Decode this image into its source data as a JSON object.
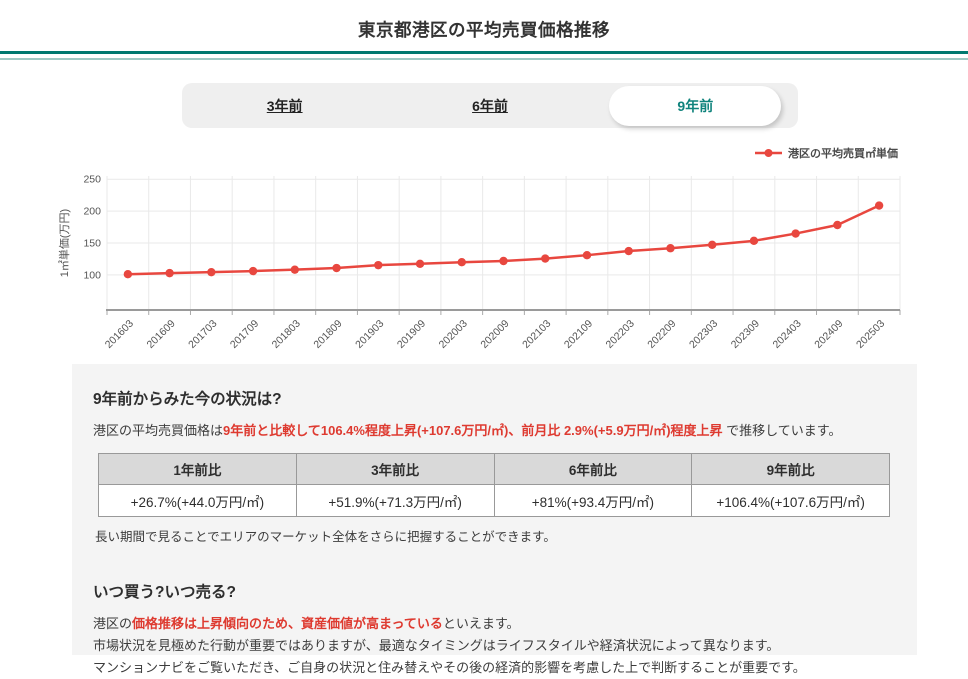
{
  "page": {
    "title": "東京都港区の平均売買価格推移"
  },
  "tabs": {
    "items": [
      {
        "label": "3年前",
        "active": false
      },
      {
        "label": "6年前",
        "active": false
      },
      {
        "label": "9年前",
        "active": true
      }
    ]
  },
  "legend": {
    "label": "港区の平均売買㎡単価"
  },
  "chart_data": {
    "type": "line",
    "x": [
      "201603",
      "201609",
      "201703",
      "201709",
      "201803",
      "201809",
      "201903",
      "201909",
      "202003",
      "202009",
      "202103",
      "202109",
      "202203",
      "202209",
      "202303",
      "202309",
      "202403",
      "202409",
      "202503"
    ],
    "series": [
      {
        "name": "港区の平均売買㎡単価",
        "values": [
          101.1,
          102.8,
          104.3,
          106.0,
          108.2,
          110.8,
          115.3,
          117.4,
          119.9,
          121.8,
          125.6,
          130.9,
          137.4,
          141.8,
          147.2,
          153.4,
          164.8,
          178.2,
          208.7
        ]
      }
    ],
    "title": "",
    "xlabel": "",
    "ylabel": "1㎡単価(万円)",
    "yticks": [
      100,
      150,
      200,
      250
    ],
    "ylim": [
      45,
      255
    ],
    "grid": true,
    "legend_position": "top-right",
    "line_color": "#e8473f"
  },
  "status": {
    "heading": "9年前からみた今の状況は?",
    "lead_prefix": "港区の平均売買価格は",
    "lead_highlight": "9年前と比較して106.4%程度上昇(+107.6万円/㎡)、前月比 2.9%(+5.9万円/㎡)程度上昇",
    "lead_suffix": " で推移しています。",
    "table": {
      "headers": [
        "1年前比",
        "3年前比",
        "6年前比",
        "9年前比"
      ],
      "values": [
        "+26.7%(+44.0万円/㎡)",
        "+51.9%(+71.3万円/㎡)",
        "+81%(+93.4万円/㎡)",
        "+106.4%(+107.6万円/㎡)"
      ]
    },
    "note": "長い期間で見ることでエリアのマーケット全体をさらに把握することができます。"
  },
  "advice": {
    "heading": "いつ買う?いつ売る?",
    "line1_prefix": "港区の",
    "line1_highlight": "価格推移は上昇傾向のため、資産価値が高まっている",
    "line1_suffix": "といえます。",
    "line2": "市場状況を見極めた行動が重要ではありますが、最適なタイミングはライフスタイルや経済状況によって異なります。",
    "line3": "マンションナビをご覧いただき、ご自身の状況と住み替えやその後の経済的影響を考慮した上で判断することが重要です。"
  },
  "colors": {
    "accent_teal": "#00786f",
    "teal_light": "#9fc8c3",
    "tab_active_text": "#0f837c",
    "series_red": "#e8473f",
    "highlight_red": "#de3a30",
    "panel_bg": "#f4f4f4",
    "table_header_bg": "#d9d9d9",
    "grid": "#e9e9e9"
  }
}
